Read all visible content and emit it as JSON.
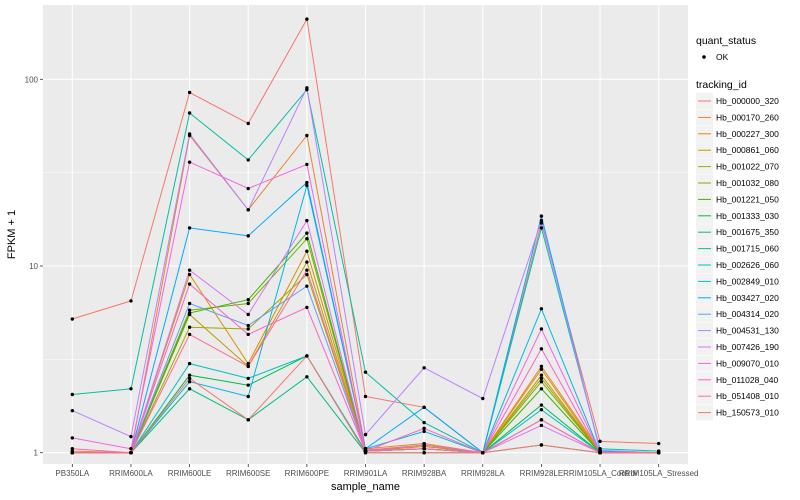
{
  "chart_data": {
    "type": "line",
    "xlabel": "sample_name",
    "ylabel": "FPKM + 1",
    "y_scale": "log10",
    "ylim": [
      0.87,
      250
    ],
    "y_ticks": [
      1,
      10,
      100
    ],
    "y_tick_labels": [
      "1",
      "10",
      "100"
    ],
    "grid": true,
    "panel_background": "#ebebeb",
    "categories": [
      "PB350LA",
      "RRIM600LA",
      "RRIM600LE",
      "RRIM600SE",
      "RRIM600PE",
      "RRIM901LA",
      "RRIM928BA",
      "RRIM928LA",
      "RRIM928LE",
      "RRIM105LA_Control",
      "RRIM105LA_Stressed"
    ],
    "legend_shape": {
      "title": "quant_status",
      "entries": [
        "OK"
      ]
    },
    "legend_color": {
      "title": "tracking_id",
      "position": "right"
    },
    "series": [
      {
        "name": "Hb_000000_320",
        "color": "#F8766D",
        "values": [
          5.2,
          6.5,
          85,
          58,
          210,
          2.0,
          1.75,
          1.0,
          17,
          1.15,
          1.12
        ]
      },
      {
        "name": "Hb_000170_260",
        "color": "#EA8331",
        "values": [
          1.02,
          1.0,
          50,
          20,
          50,
          1.05,
          1.12,
          1.0,
          2.9,
          1.02,
          1.0
        ]
      },
      {
        "name": "Hb_000227_300",
        "color": "#D89000",
        "values": [
          1.0,
          1.0,
          9.0,
          3.0,
          12,
          1.03,
          1.1,
          1.0,
          2.8,
          1.0,
          1.0
        ]
      },
      {
        "name": "Hb_000861_060",
        "color": "#C09B00",
        "values": [
          1.0,
          1.0,
          5.5,
          2.9,
          10.5,
          1.02,
          1.08,
          1.0,
          2.6,
          1.0,
          1.0
        ]
      },
      {
        "name": "Hb_001022_070",
        "color": "#A3A500",
        "values": [
          1.0,
          1.0,
          4.7,
          4.6,
          9.0,
          1.02,
          1.05,
          1.0,
          2.5,
          1.0,
          1.0
        ]
      },
      {
        "name": "Hb_001032_080",
        "color": "#7CAE00",
        "values": [
          1.0,
          1.0,
          5.8,
          6.3,
          14,
          1.02,
          1.1,
          1.0,
          2.4,
          1.0,
          1.0
        ]
      },
      {
        "name": "Hb_001221_050",
        "color": "#39B600",
        "values": [
          1.0,
          1.0,
          5.6,
          6.6,
          15,
          1.02,
          1.05,
          1.0,
          2.2,
          1.0,
          1.0
        ]
      },
      {
        "name": "Hb_001333_030",
        "color": "#00BB4E",
        "values": [
          1.0,
          1.0,
          2.6,
          2.3,
          3.3,
          1.02,
          1.05,
          1.0,
          1.8,
          1.0,
          1.0
        ]
      },
      {
        "name": "Hb_001675_350",
        "color": "#00BF7D",
        "values": [
          1.0,
          1.0,
          2.2,
          1.5,
          2.55,
          1.0,
          1.0,
          1.0,
          1.1,
          1.0,
          1.0
        ]
      },
      {
        "name": "Hb_001715_060",
        "color": "#00C1A3",
        "values": [
          2.05,
          2.2,
          66,
          37,
          88,
          2.7,
          1.45,
          1.0,
          16,
          1.05,
          1.02
        ]
      },
      {
        "name": "Hb_002626_060",
        "color": "#00BFC4",
        "values": [
          1.0,
          1.0,
          3.0,
          2.5,
          3.3,
          1.02,
          1.05,
          1.0,
          1.7,
          1.0,
          1.0
        ]
      },
      {
        "name": "Hb_002849_010",
        "color": "#00B8E7",
        "values": [
          1.0,
          1.0,
          2.4,
          2.0,
          27,
          1.05,
          1.3,
          1.0,
          5.9,
          1.0,
          1.0
        ]
      },
      {
        "name": "Hb_003427_020",
        "color": "#00A9FF",
        "values": [
          1.0,
          1.0,
          16,
          14.5,
          28,
          1.05,
          1.75,
          1.0,
          18.5,
          1.02,
          1.0
        ]
      },
      {
        "name": "Hb_004314_020",
        "color": "#619CFF",
        "values": [
          1.0,
          1.0,
          6.3,
          4.8,
          7.8,
          1.02,
          1.05,
          1.0,
          1.5,
          1.0,
          1.0
        ]
      },
      {
        "name": "Hb_004531_130",
        "color": "#B983FF",
        "values": [
          1.68,
          1.22,
          51,
          20,
          90,
          1.25,
          2.85,
          1.95,
          17.5,
          1.03,
          1.0
        ]
      },
      {
        "name": "Hb_007426_190",
        "color": "#DB72FB",
        "values": [
          1.0,
          1.0,
          9.5,
          5.5,
          17.5,
          1.02,
          1.05,
          1.0,
          1.4,
          1.0,
          1.0
        ]
      },
      {
        "name": "Hb_009070_010",
        "color": "#F564E3",
        "values": [
          1.2,
          1.05,
          36,
          26,
          35,
          1.02,
          1.1,
          1.0,
          4.6,
          1.0,
          1.0
        ]
      },
      {
        "name": "Hb_011028_040",
        "color": "#FF61C3",
        "values": [
          1.05,
          1.0,
          8.0,
          4.3,
          6.0,
          1.02,
          1.35,
          1.0,
          3.6,
          1.0,
          1.0
        ]
      },
      {
        "name": "Hb_051408_010",
        "color": "#FF6C91",
        "values": [
          1.0,
          1.0,
          4.3,
          2.9,
          9.5,
          1.02,
          1.05,
          1.0,
          1.5,
          1.0,
          1.0
        ]
      },
      {
        "name": "Hb_150573_010",
        "color": "#F8766D",
        "values": [
          1.0,
          1.0,
          2.5,
          1.5,
          3.3,
          1.0,
          1.0,
          1.0,
          1.1,
          1.0,
          1.0
        ]
      }
    ]
  }
}
